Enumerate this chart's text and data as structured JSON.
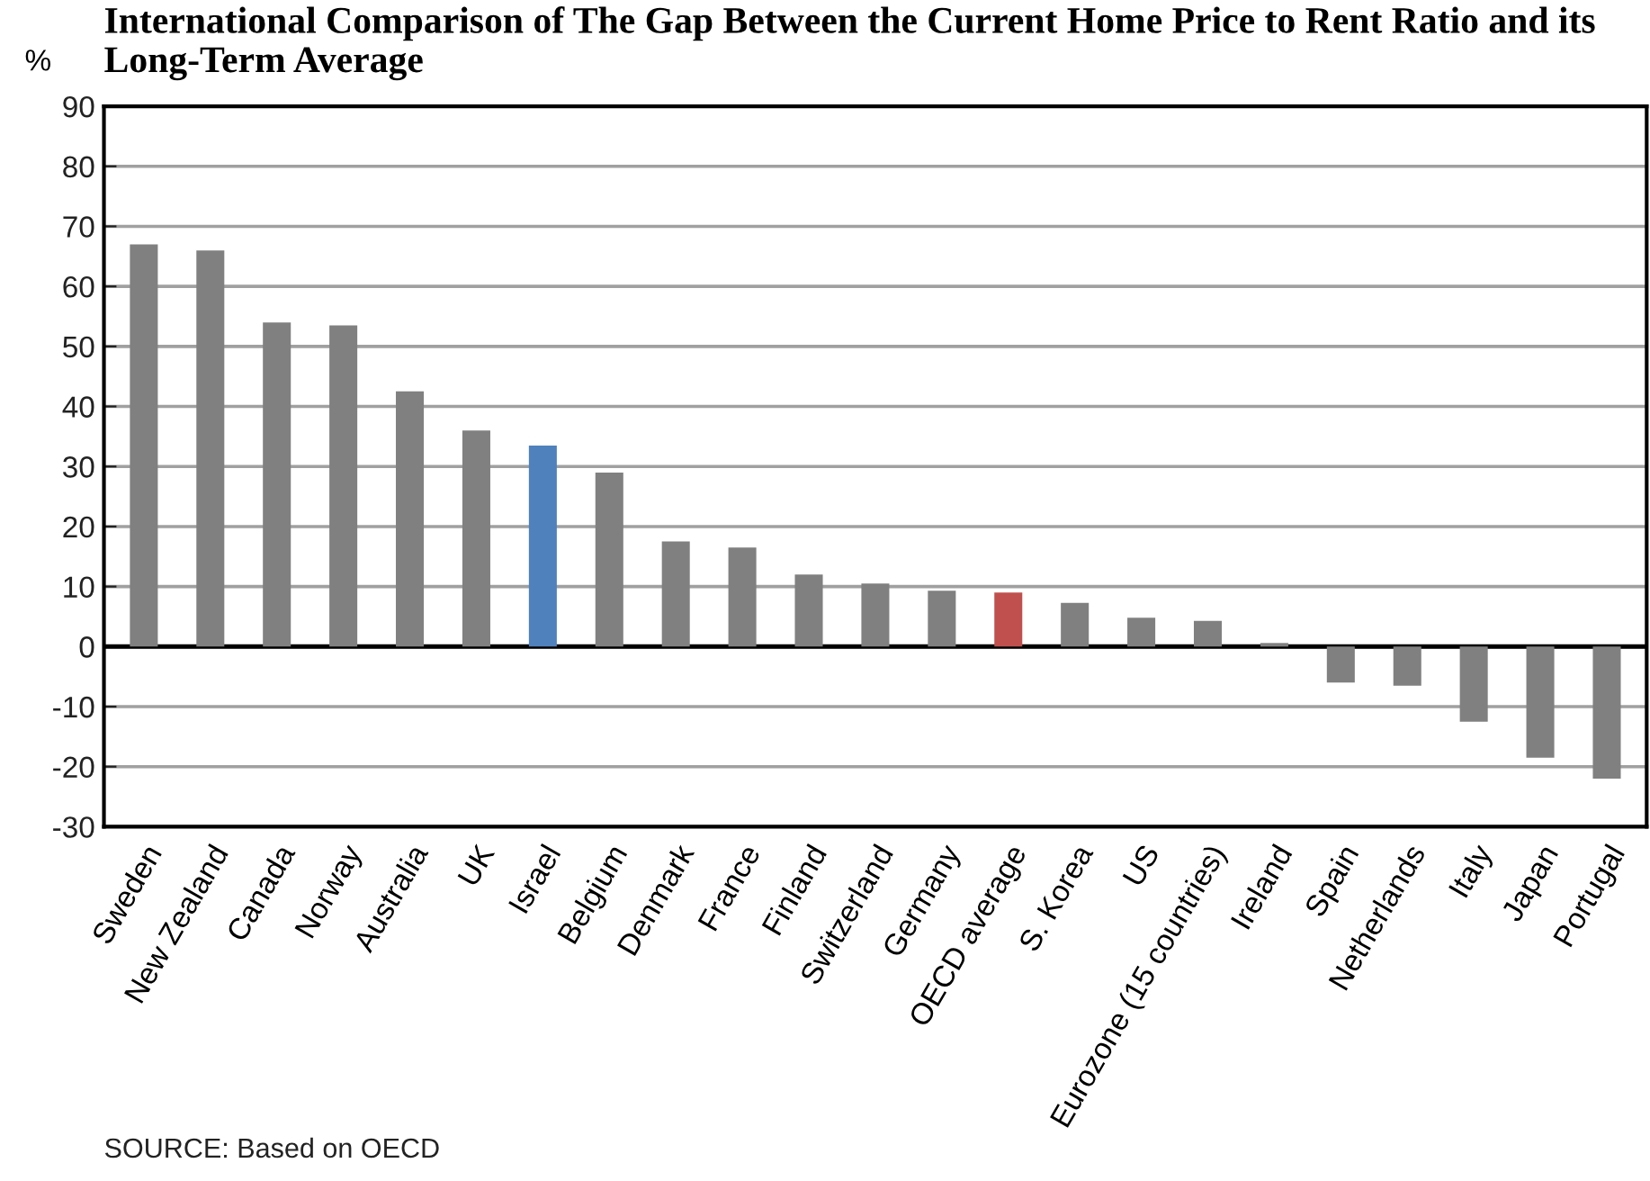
{
  "chart_data": {
    "type": "bar",
    "title": "International Comparison of The Gap Between the Current Home Price to Rent Ratio and its Long-Term Average",
    "ylabel": "%",
    "categories": [
      "Sweden",
      "New Zealand",
      "Canada",
      "Norway",
      "Australia",
      "UK",
      "Israel",
      "Belgium",
      "Denmark",
      "France",
      "Finland",
      "Switzerland",
      "Germany",
      "OECD average",
      "S. Korea",
      "US",
      "Eurozone (15 countries)",
      "Ireland",
      "Spain",
      "Netherlands",
      "Italy",
      "Japan",
      "Portugal"
    ],
    "values": [
      67,
      66,
      54,
      53.5,
      42.5,
      36,
      33.5,
      29,
      17.5,
      16.5,
      12,
      10.5,
      9.3,
      9,
      7.3,
      4.8,
      4.3,
      0.6,
      -6,
      -6.5,
      -12.5,
      -18.5,
      -22
    ],
    "colors": [
      "#808080",
      "#808080",
      "#808080",
      "#808080",
      "#808080",
      "#808080",
      "#4f81bd",
      "#808080",
      "#808080",
      "#808080",
      "#808080",
      "#808080",
      "#808080",
      "#c0504d",
      "#808080",
      "#808080",
      "#808080",
      "#808080",
      "#808080",
      "#808080",
      "#808080",
      "#808080",
      "#808080"
    ],
    "ylim": [
      -30,
      90
    ],
    "yticks": [
      -30,
      -20,
      -10,
      0,
      10,
      20,
      30,
      40,
      50,
      60,
      70,
      80,
      90
    ],
    "grid": "y",
    "legend": false,
    "ref_lines": [
      {
        "axis": "y",
        "value": 0,
        "color": "#000000"
      }
    ],
    "annotations": [
      "SOURCE: Based on OECD"
    ]
  }
}
